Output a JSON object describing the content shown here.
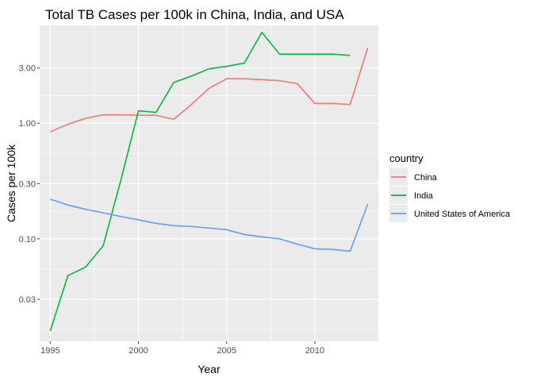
{
  "chart_data": {
    "type": "line",
    "title": "Total TB Cases per 100k in China, India, and USA",
    "xlabel": "Year",
    "ylabel": "Cases per 100k",
    "y_scale": "log10",
    "xlim": [
      1994.4,
      2013.6
    ],
    "ylim": [
      0.013,
      7.0
    ],
    "x_ticks": [
      1995,
      2000,
      2005,
      2010
    ],
    "x_tick_labels": [
      "1995",
      "2000",
      "2005",
      "2010"
    ],
    "y_ticks": [
      0.03,
      0.1,
      0.3,
      1,
      3
    ],
    "y_tick_labels": [
      "0.03",
      "0.10",
      "0.30",
      "1.00",
      "3.00"
    ],
    "grid": true,
    "legend": {
      "title": "country",
      "position": "right"
    },
    "series": [
      {
        "name": "China",
        "color": "#F8766D",
        "x": [
          1995,
          1996,
          1997,
          1998,
          1999,
          2000,
          2001,
          2002,
          2003,
          2004,
          2005,
          2006,
          2007,
          2008,
          2009,
          2010,
          2011,
          2012,
          2013
        ],
        "y": [
          0.84,
          0.98,
          1.1,
          1.18,
          1.18,
          1.17,
          1.17,
          1.08,
          1.45,
          2.0,
          2.42,
          2.42,
          2.38,
          2.33,
          2.2,
          1.48,
          1.48,
          1.45,
          4.5
        ]
      },
      {
        "name": "India",
        "color": "#00BA38",
        "x": [
          1995,
          1996,
          1997,
          1998,
          1999,
          2000,
          2001,
          2002,
          2003,
          2004,
          2005,
          2006,
          2007,
          2008,
          2009,
          2010,
          2011,
          2012
        ],
        "y": [
          0.016,
          0.048,
          0.057,
          0.087,
          0.32,
          1.28,
          1.24,
          2.25,
          2.55,
          2.95,
          3.1,
          3.3,
          6.1,
          3.95,
          3.95,
          3.95,
          3.95,
          3.85
        ]
      },
      {
        "name": "United States of America",
        "color": "#619CFF",
        "x": [
          1995,
          1996,
          1997,
          1998,
          1999,
          2000,
          2001,
          2002,
          2003,
          2004,
          2005,
          2006,
          2007,
          2008,
          2009,
          2010,
          2011,
          2012,
          2013
        ],
        "y": [
          0.22,
          0.196,
          0.18,
          0.168,
          0.156,
          0.146,
          0.136,
          0.13,
          0.128,
          0.124,
          0.12,
          0.109,
          0.104,
          0.1,
          0.09,
          0.082,
          0.081,
          0.078,
          0.2
        ]
      }
    ]
  }
}
